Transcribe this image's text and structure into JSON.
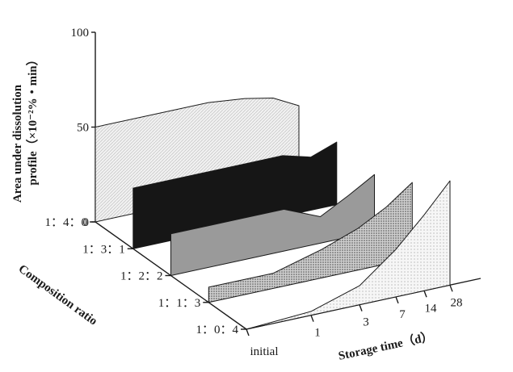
{
  "chart_data": {
    "type": "area",
    "chart_style": "3d-ribbon",
    "title": "",
    "z_axis": {
      "label_line1": "Area under dissolution",
      "label_line2": "profile（×10⁻²%・min）",
      "ticks": [
        "0",
        "50",
        "100"
      ],
      "range": [
        0,
        100
      ]
    },
    "x_axis": {
      "label": "Storage time（d）",
      "ticks": [
        "initial",
        "1",
        "3",
        "7",
        "14",
        "28"
      ]
    },
    "y_axis": {
      "label": "Composition ratio",
      "ticks": [
        "1：4：0",
        "1：3：1",
        "1：2：2",
        "1：1：3",
        "1：0：4"
      ]
    },
    "series": [
      {
        "name": "1：4：0",
        "values": [
          50,
          50,
          50,
          48,
          45,
          38
        ],
        "fill": "pattern-light-hatch"
      },
      {
        "name": "1：3：1",
        "values": [
          32,
          32,
          32,
          32,
          28,
          33
        ],
        "fill": "#161616"
      },
      {
        "name": "1：2：2",
        "values": [
          22,
          22,
          22,
          14,
          22,
          30
        ],
        "fill": "#9a9a9a"
      },
      {
        "name": "1：1：3",
        "values": [
          8,
          8,
          15,
          22,
          30,
          40
        ],
        "fill": "pattern-dots-dark"
      },
      {
        "name": "1：0：4",
        "values": [
          0,
          2,
          10,
          25,
          40,
          55
        ],
        "fill": "pattern-dots-light"
      }
    ]
  }
}
